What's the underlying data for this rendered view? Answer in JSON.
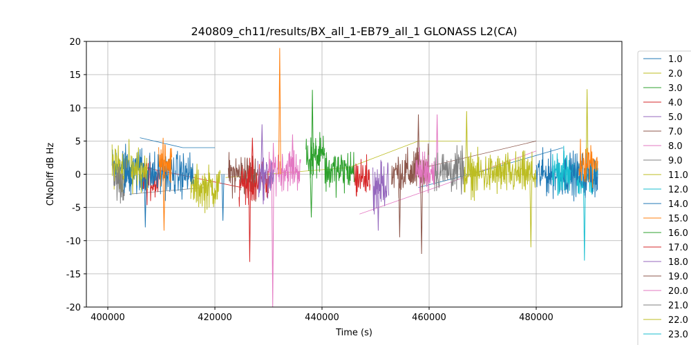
{
  "chart_data": {
    "type": "line",
    "title": "240809_ch11/results/BX_all_1-EB79_all_1 GLONASS L2(CA)",
    "xlabel": "Time (s)",
    "ylabel": "CNoDiff dB Hz",
    "xlim": [
      396000,
      496000
    ],
    "ylim": [
      -20,
      20
    ],
    "x_ticks": [
      400000,
      420000,
      440000,
      460000,
      480000
    ],
    "y_ticks": [
      -20,
      -15,
      -10,
      -5,
      0,
      5,
      10,
      15,
      20
    ],
    "grid": true,
    "legend_position": "right-outside",
    "series": [
      {
        "name": "1.0",
        "color": "#1f77b4",
        "segments": [
          [
            400800,
            407000,
            1.0
          ]
        ],
        "peaks": []
      },
      {
        "name": "2.0",
        "color": "#bcbd22",
        "segments": [
          [
            400800,
            404500,
            1.0
          ]
        ],
        "peaks": []
      },
      {
        "name": "3.0",
        "color": "#2ca02c",
        "segments": [
          [
            437000,
            440500,
            2.5
          ]
        ],
        "peaks": [
          [
            438200,
            12.7
          ],
          [
            438000,
            -6.5
          ]
        ]
      },
      {
        "name": "4.0",
        "color": "#d62728",
        "segments": [
          [
            406500,
            409500,
            -0.8
          ]
        ],
        "peaks": []
      },
      {
        "name": "5.0",
        "color": "#9467bd",
        "segments": [
          [
            449500,
            452500,
            -1.5
          ]
        ],
        "peaks": [
          [
            450500,
            -8.5
          ]
        ]
      },
      {
        "name": "7.0",
        "color": "#8c564b",
        "segments": [
          [
            422500,
            428000,
            0.0
          ],
          [
            453000,
            458000,
            0.3
          ]
        ],
        "peaks": [
          [
            454500,
            -9.5
          ]
        ]
      },
      {
        "name": "8.0",
        "color": "#e377c2",
        "segments": [
          [
            430000,
            436000,
            0.8
          ]
        ],
        "peaks": [
          [
            430800,
            -20.0
          ],
          [
            434500,
            6.0
          ]
        ]
      },
      {
        "name": "9.0",
        "color": "#7f7f7f",
        "segments": [
          [
            401000,
            403500,
            -1.0
          ]
        ],
        "peaks": []
      },
      {
        "name": "11.0",
        "color": "#bcbd22",
        "segments": [
          [
            415500,
            421000,
            -2.0
          ],
          [
            466500,
            480000,
            0.0
          ]
        ],
        "peaks": [
          [
            467000,
            9.5
          ],
          [
            479000,
            -11.0
          ],
          [
            489500,
            12.8
          ]
        ]
      },
      {
        "name": "12.0",
        "color": "#17becf",
        "segments": [
          [
            485000,
            491500,
            -0.5
          ]
        ],
        "peaks": [
          [
            489000,
            -13.0
          ]
        ]
      },
      {
        "name": "14.0",
        "color": "#1f77b4",
        "segments": [
          [
            403000,
            416000,
            0.0
          ],
          [
            480000,
            491500,
            0.0
          ]
        ],
        "peaks": [
          [
            407000,
            -8.0
          ],
          [
            421500,
            -7.0
          ]
        ]
      },
      {
        "name": "15.0",
        "color": "#ff7f0e",
        "segments": [
          [
            409500,
            412000,
            1.5
          ],
          [
            488000,
            491500,
            2.0
          ]
        ],
        "peaks": [
          [
            432100,
            19.0
          ],
          [
            410500,
            -8.5
          ]
        ]
      },
      {
        "name": "16.0",
        "color": "#2ca02c",
        "segments": [
          [
            440500,
            446000,
            0.5
          ]
        ],
        "peaks": []
      },
      {
        "name": "17.0",
        "color": "#d62728",
        "segments": [
          [
            424500,
            430000,
            -1.5
          ],
          [
            446000,
            449000,
            -0.5
          ]
        ],
        "peaks": [
          [
            426500,
            -13.2
          ],
          [
            427000,
            5.5
          ]
        ]
      },
      {
        "name": "18.0",
        "color": "#9467bd",
        "segments": [
          [
            428000,
            431000,
            -0.5
          ]
        ],
        "peaks": [
          [
            428800,
            7.5
          ]
        ]
      },
      {
        "name": "19.0",
        "color": "#8c564b",
        "segments": [
          [
            457000,
            460000,
            1.0
          ]
        ],
        "peaks": [
          [
            458600,
            -12.0
          ],
          [
            458000,
            9.0
          ]
        ]
      },
      {
        "name": "20.0",
        "color": "#e377c2",
        "segments": [
          [
            457500,
            461000,
            0.5
          ]
        ],
        "peaks": [
          [
            461500,
            9.0
          ]
        ]
      },
      {
        "name": "21.0",
        "color": "#7f7f7f",
        "segments": [
          [
            461000,
            466500,
            0.5
          ]
        ],
        "peaks": []
      },
      {
        "name": "22.0",
        "color": "#bcbd22",
        "segments": [
          [
            404500,
            407500,
            0.2
          ]
        ],
        "peaks": []
      },
      {
        "name": "23.0",
        "color": "#17becf",
        "segments": [
          [
            483000,
            486500,
            0.5
          ]
        ],
        "peaks": []
      }
    ],
    "connectors": [
      {
        "color": "#1f77b4",
        "points": [
          [
            406000,
            5.5
          ],
          [
            414000,
            4.0
          ],
          [
            420000,
            4.0
          ]
        ]
      },
      {
        "color": "#bcbd22",
        "points": [
          [
            422000,
            -0.5
          ],
          [
            445000,
            1.0
          ],
          [
            458000,
            5.0
          ],
          [
            466000,
            5.0
          ]
        ]
      },
      {
        "color": "#8c564b",
        "points": [
          [
            459000,
            1.0
          ],
          [
            480000,
            5.0
          ]
        ]
      },
      {
        "color": "#e377c2",
        "points": [
          [
            447000,
            -6.0
          ],
          [
            463000,
            -1.5
          ],
          [
            480000,
            3.5
          ]
        ]
      },
      {
        "color": "#7f7f7f",
        "points": [
          [
            404000,
            -3.0
          ],
          [
            418000,
            -2.0
          ]
        ]
      },
      {
        "color": "#1f77b4",
        "points": [
          [
            458000,
            -2.0
          ],
          [
            470000,
            0.5
          ],
          [
            485000,
            4.0
          ]
        ]
      },
      {
        "color": "#d62728",
        "points": [
          [
            407000,
            1.0
          ],
          [
            425000,
            -2.0
          ]
        ]
      }
    ]
  }
}
